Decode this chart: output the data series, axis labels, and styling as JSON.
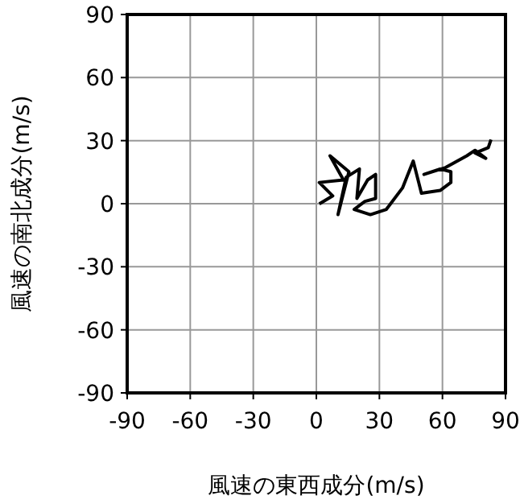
{
  "chart_data": {
    "type": "line",
    "xlabel": "風速の東西成分(m/s)",
    "ylabel": "風速の南北成分(m/s)",
    "xlim": [
      -90,
      90
    ],
    "ylim": [
      -90,
      90
    ],
    "xticks": [
      -90,
      -60,
      -30,
      0,
      30,
      60,
      90
    ],
    "yticks": [
      -90,
      -60,
      -30,
      0,
      30,
      60,
      90
    ],
    "grid": true,
    "x": [
      1.4,
      7.8,
      1.4,
      12.9,
      6.5,
      15.5,
      10.3,
      14.2,
      20.5,
      19.3,
      24.4,
      28.2,
      28.2,
      23.1,
      18,
      25.7,
      33.3,
      41,
      46.1,
      48.7,
      50,
      58.9,
      64,
      64,
      58.9,
      51.2,
      61.5,
      71.6,
      75.5,
      80.6,
      75.5,
      81.8,
      83.1
    ],
    "series": [
      {
        "color": "#000000",
        "values": [
          -0.1,
          3.7,
          10.1,
          11.3,
          22.8,
          15.2,
          -5.2,
          12.6,
          16.5,
          2.5,
          11.3,
          13.9,
          2.5,
          1.1,
          -2.7,
          -5.2,
          -2.7,
          7.5,
          20.3,
          10.1,
          5,
          6.3,
          10.1,
          15.2,
          16.5,
          13.9,
          17.2,
          22.8,
          25.4,
          21.6,
          24.1,
          26.7,
          30.5
        ]
      }
    ]
  }
}
